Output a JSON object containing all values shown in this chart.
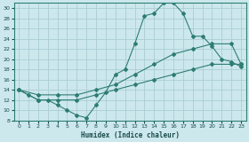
{
  "xlabel": "Humidex (Indice chaleur)",
  "bg_color": "#cce8ed",
  "grid_color": "#aacdd4",
  "line_color": "#2e7d72",
  "xlim": [
    -0.5,
    23.5
  ],
  "ylim": [
    8,
    31
  ],
  "xticks": [
    0,
    1,
    2,
    3,
    4,
    5,
    6,
    7,
    8,
    9,
    10,
    11,
    12,
    13,
    14,
    15,
    16,
    17,
    18,
    19,
    20,
    21,
    22,
    23
  ],
  "yticks": [
    8,
    10,
    12,
    14,
    16,
    18,
    20,
    22,
    24,
    26,
    28,
    30
  ],
  "curve1_x": [
    0,
    1,
    2,
    3,
    4,
    5,
    6,
    7,
    8,
    9,
    10,
    11,
    12,
    13,
    14,
    15,
    16,
    17,
    18,
    19,
    20,
    21,
    22,
    23
  ],
  "curve1_y": [
    14,
    13,
    12,
    12,
    11,
    10,
    9,
    8.5,
    11,
    13.5,
    17,
    18,
    23,
    28.5,
    29,
    31,
    31,
    29,
    24.5,
    24.5,
    22.5,
    20,
    19.5,
    18.5
  ],
  "curve2_x": [
    0,
    2,
    4,
    6,
    8,
    10,
    12,
    14,
    16,
    18,
    20,
    22,
    23
  ],
  "curve2_y": [
    14,
    13,
    13,
    13,
    14,
    15,
    17,
    19,
    21,
    22,
    23,
    23,
    19
  ],
  "curve3_x": [
    0,
    2,
    4,
    6,
    8,
    10,
    12,
    14,
    16,
    18,
    20,
    22,
    23
  ],
  "curve3_y": [
    14,
    12,
    12,
    12,
    13,
    14,
    15,
    16,
    17,
    18,
    19,
    19,
    19
  ]
}
